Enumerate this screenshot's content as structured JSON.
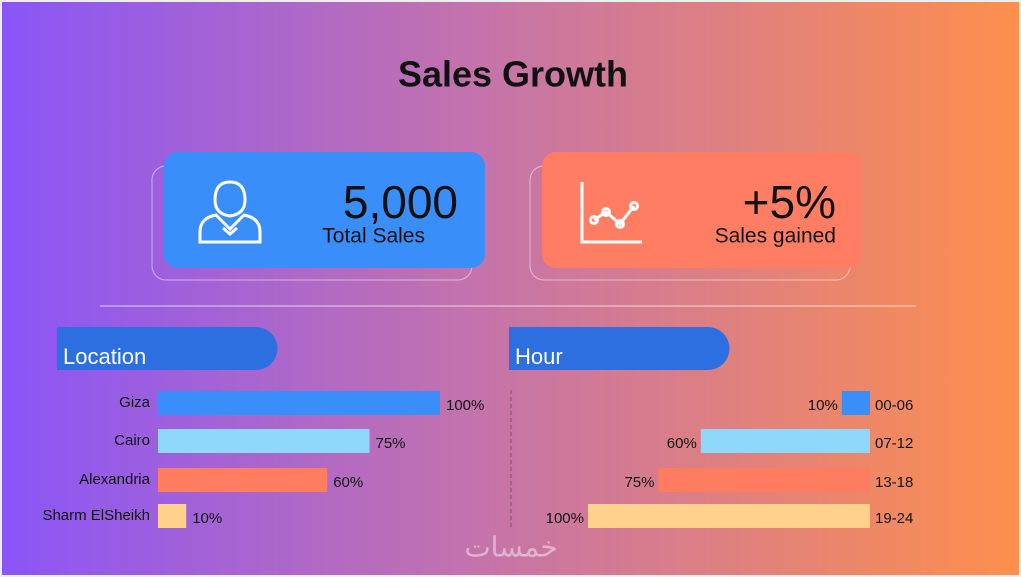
{
  "title": "Sales Growth",
  "cards": [
    {
      "value": "5,000",
      "label": "Total Sales",
      "color": "#3a8ef9"
    },
    {
      "value": "+5%",
      "label": "Sales gained",
      "color": "#ff7d62"
    }
  ],
  "chart_data": [
    {
      "type": "bar",
      "orientation": "horizontal",
      "align": "left",
      "title": "Location",
      "categories": [
        "Giza",
        "Cairo",
        "Alexandria",
        "Sharm ElSheikh"
      ],
      "values": [
        100,
        75,
        60,
        10
      ],
      "value_labels": [
        "100%",
        "75%",
        "60%",
        "10%"
      ],
      "colors": [
        "#3a8ef9",
        "#8fd7fb",
        "#fe7d60",
        "#fed18d"
      ]
    },
    {
      "type": "bar",
      "orientation": "horizontal",
      "align": "right",
      "title": "Hour",
      "categories": [
        "00-06",
        "07-12",
        "13-18",
        "19-24"
      ],
      "values": [
        10,
        60,
        75,
        100
      ],
      "value_labels": [
        "10%",
        "60%",
        "75%",
        "100%"
      ],
      "colors": [
        "#3a8ef9",
        "#8fd7fb",
        "#fe7d60",
        "#fed18d"
      ]
    }
  ],
  "watermark": "خمسات"
}
